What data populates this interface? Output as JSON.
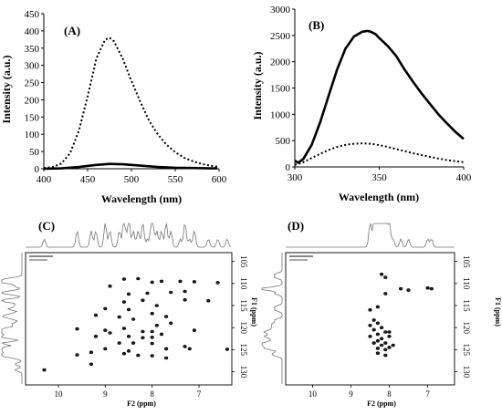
{
  "chart_data": [
    {
      "type": "line",
      "panel_label": "(A)",
      "xlabel": "Wavelength (nm)",
      "ylabel": "Intensity (a.u.)",
      "xlim": [
        400,
        600
      ],
      "ylim": [
        0,
        450
      ],
      "xticks": [
        400,
        450,
        500,
        550,
        600
      ],
      "yticks": [
        0,
        50,
        100,
        150,
        200,
        250,
        300,
        350,
        400,
        450
      ],
      "series": [
        {
          "style": "dotted",
          "color": "#000000",
          "x": [
            400,
            410,
            420,
            430,
            440,
            450,
            460,
            470,
            475,
            480,
            490,
            500,
            510,
            520,
            530,
            540,
            550,
            560,
            570,
            580,
            590,
            598
          ],
          "y": [
            2,
            5,
            15,
            45,
            110,
            210,
            320,
            375,
            380,
            370,
            320,
            255,
            195,
            140,
            100,
            70,
            48,
            32,
            22,
            14,
            9,
            6
          ]
        },
        {
          "style": "solid",
          "color": "#000000",
          "x": [
            400,
            420,
            440,
            460,
            475,
            490,
            510,
            530,
            550,
            570,
            590,
            598
          ],
          "y": [
            0,
            1,
            5,
            11,
            14,
            13,
            9,
            5,
            3,
            2,
            1,
            1
          ]
        }
      ]
    },
    {
      "type": "line",
      "panel_label": "(B)",
      "xlabel": "Wavelength (nm)",
      "ylabel": "Intensity (a.u.)",
      "xlim": [
        300,
        400
      ],
      "ylim": [
        0,
        3000
      ],
      "xticks": [
        300,
        350,
        400
      ],
      "yticks": [
        0,
        500,
        1000,
        1500,
        2000,
        2500,
        3000
      ],
      "series": [
        {
          "style": "solid",
          "color": "#000000",
          "x": [
            300,
            302,
            305,
            310,
            315,
            320,
            325,
            330,
            335,
            340,
            343,
            345,
            348,
            350,
            355,
            360,
            365,
            370,
            375,
            380,
            385,
            390,
            395,
            400
          ],
          "y": [
            120,
            80,
            150,
            420,
            850,
            1350,
            1850,
            2250,
            2480,
            2570,
            2585,
            2570,
            2520,
            2450,
            2300,
            2110,
            1850,
            1620,
            1400,
            1200,
            1000,
            830,
            670,
            530
          ]
        },
        {
          "style": "dotted",
          "color": "#000000",
          "x": [
            300,
            305,
            310,
            315,
            320,
            325,
            330,
            335,
            340,
            345,
            350,
            355,
            360,
            370,
            380,
            390,
            400
          ],
          "y": [
            40,
            90,
            170,
            250,
            320,
            380,
            420,
            440,
            450,
            440,
            415,
            380,
            340,
            260,
            190,
            130,
            90
          ]
        }
      ]
    },
    {
      "type": "scatter",
      "panel_label": "(C)",
      "xlabel": "F2 (ppm)",
      "ylabel": "F1 (ppm)",
      "xlim": [
        10.7,
        6.3
      ],
      "ylim": [
        133,
        103
      ],
      "xticks": [
        10,
        9,
        8,
        7
      ],
      "yticks": [
        105,
        110,
        115,
        120,
        125,
        130
      ],
      "peaks": [
        [
          8.6,
          109.0
        ],
        [
          8.3,
          108.9
        ],
        [
          8.0,
          109.7
        ],
        [
          7.8,
          109.5
        ],
        [
          7.4,
          109.5
        ],
        [
          7.1,
          109.6
        ],
        [
          6.6,
          109.8
        ],
        [
          8.9,
          110.6
        ],
        [
          8.5,
          112.4
        ],
        [
          8.1,
          112.2
        ],
        [
          7.6,
          112.0
        ],
        [
          7.3,
          111.8
        ],
        [
          7.3,
          113.7
        ],
        [
          6.8,
          113.9
        ],
        [
          8.6,
          114.2
        ],
        [
          8.2,
          113.8
        ],
        [
          7.9,
          115.0
        ],
        [
          9.0,
          115.7
        ],
        [
          8.5,
          115.9
        ],
        [
          8.0,
          116.8
        ],
        [
          7.7,
          117.5
        ],
        [
          9.2,
          117.2
        ],
        [
          8.7,
          117.6
        ],
        [
          8.4,
          118.1
        ],
        [
          7.9,
          119.5
        ],
        [
          9.6,
          120.3
        ],
        [
          9.0,
          120.6
        ],
        [
          8.6,
          120.2
        ],
        [
          8.2,
          120.9
        ],
        [
          8.0,
          120.9
        ],
        [
          7.6,
          119.0
        ],
        [
          7.1,
          120.6
        ],
        [
          8.9,
          121.2
        ],
        [
          8.5,
          122.0
        ],
        [
          8.2,
          122.3
        ],
        [
          7.8,
          121.5
        ],
        [
          9.2,
          122.0
        ],
        [
          8.0,
          122.2
        ],
        [
          8.7,
          123.5
        ],
        [
          8.4,
          123.5
        ],
        [
          8.0,
          123.6
        ],
        [
          7.3,
          124.3
        ],
        [
          9.0,
          124.8
        ],
        [
          8.5,
          125.3
        ],
        [
          7.7,
          124.8
        ],
        [
          9.3,
          125.6
        ],
        [
          8.6,
          125.9
        ],
        [
          8.3,
          126.3
        ],
        [
          7.7,
          126.9
        ],
        [
          9.6,
          126.2
        ],
        [
          9.3,
          128.3
        ],
        [
          8.0,
          126.4
        ],
        [
          7.2,
          124.8
        ],
        [
          6.4,
          124.9
        ],
        [
          10.3,
          129.6
        ]
      ]
    },
    {
      "type": "scatter",
      "panel_label": "(D)",
      "xlabel": "F2 (ppm)",
      "ylabel": "F1 (ppm)",
      "xlim": [
        10.7,
        6.3
      ],
      "ylim": [
        133,
        103
      ],
      "xticks": [
        10,
        9,
        8,
        7
      ],
      "yticks": [
        105,
        110,
        115,
        120,
        125,
        130
      ],
      "peaks": [
        [
          8.2,
          107.9
        ],
        [
          8.1,
          108.6
        ],
        [
          7.7,
          111.2
        ],
        [
          7.5,
          111.5
        ],
        [
          7.0,
          111.0
        ],
        [
          6.9,
          111.2
        ],
        [
          8.1,
          112.3
        ],
        [
          8.3,
          115.3
        ],
        [
          8.5,
          116.0
        ],
        [
          8.3,
          119.0
        ],
        [
          8.5,
          119.5
        ],
        [
          8.2,
          120.0
        ],
        [
          8.4,
          120.5
        ],
        [
          8.1,
          121.0
        ],
        [
          8.3,
          121.5
        ],
        [
          8.5,
          122.0
        ],
        [
          8.2,
          122.5
        ],
        [
          8.0,
          122.0
        ],
        [
          8.3,
          123.0
        ],
        [
          8.1,
          123.5
        ],
        [
          8.4,
          123.5
        ],
        [
          8.2,
          124.0
        ],
        [
          8.0,
          124.5
        ],
        [
          8.3,
          124.7
        ],
        [
          8.1,
          125.0
        ],
        [
          7.9,
          124.0
        ],
        [
          8.3,
          125.8
        ],
        [
          8.1,
          126.3
        ],
        [
          8.0,
          121.0
        ],
        [
          8.4,
          118.3
        ]
      ]
    }
  ]
}
